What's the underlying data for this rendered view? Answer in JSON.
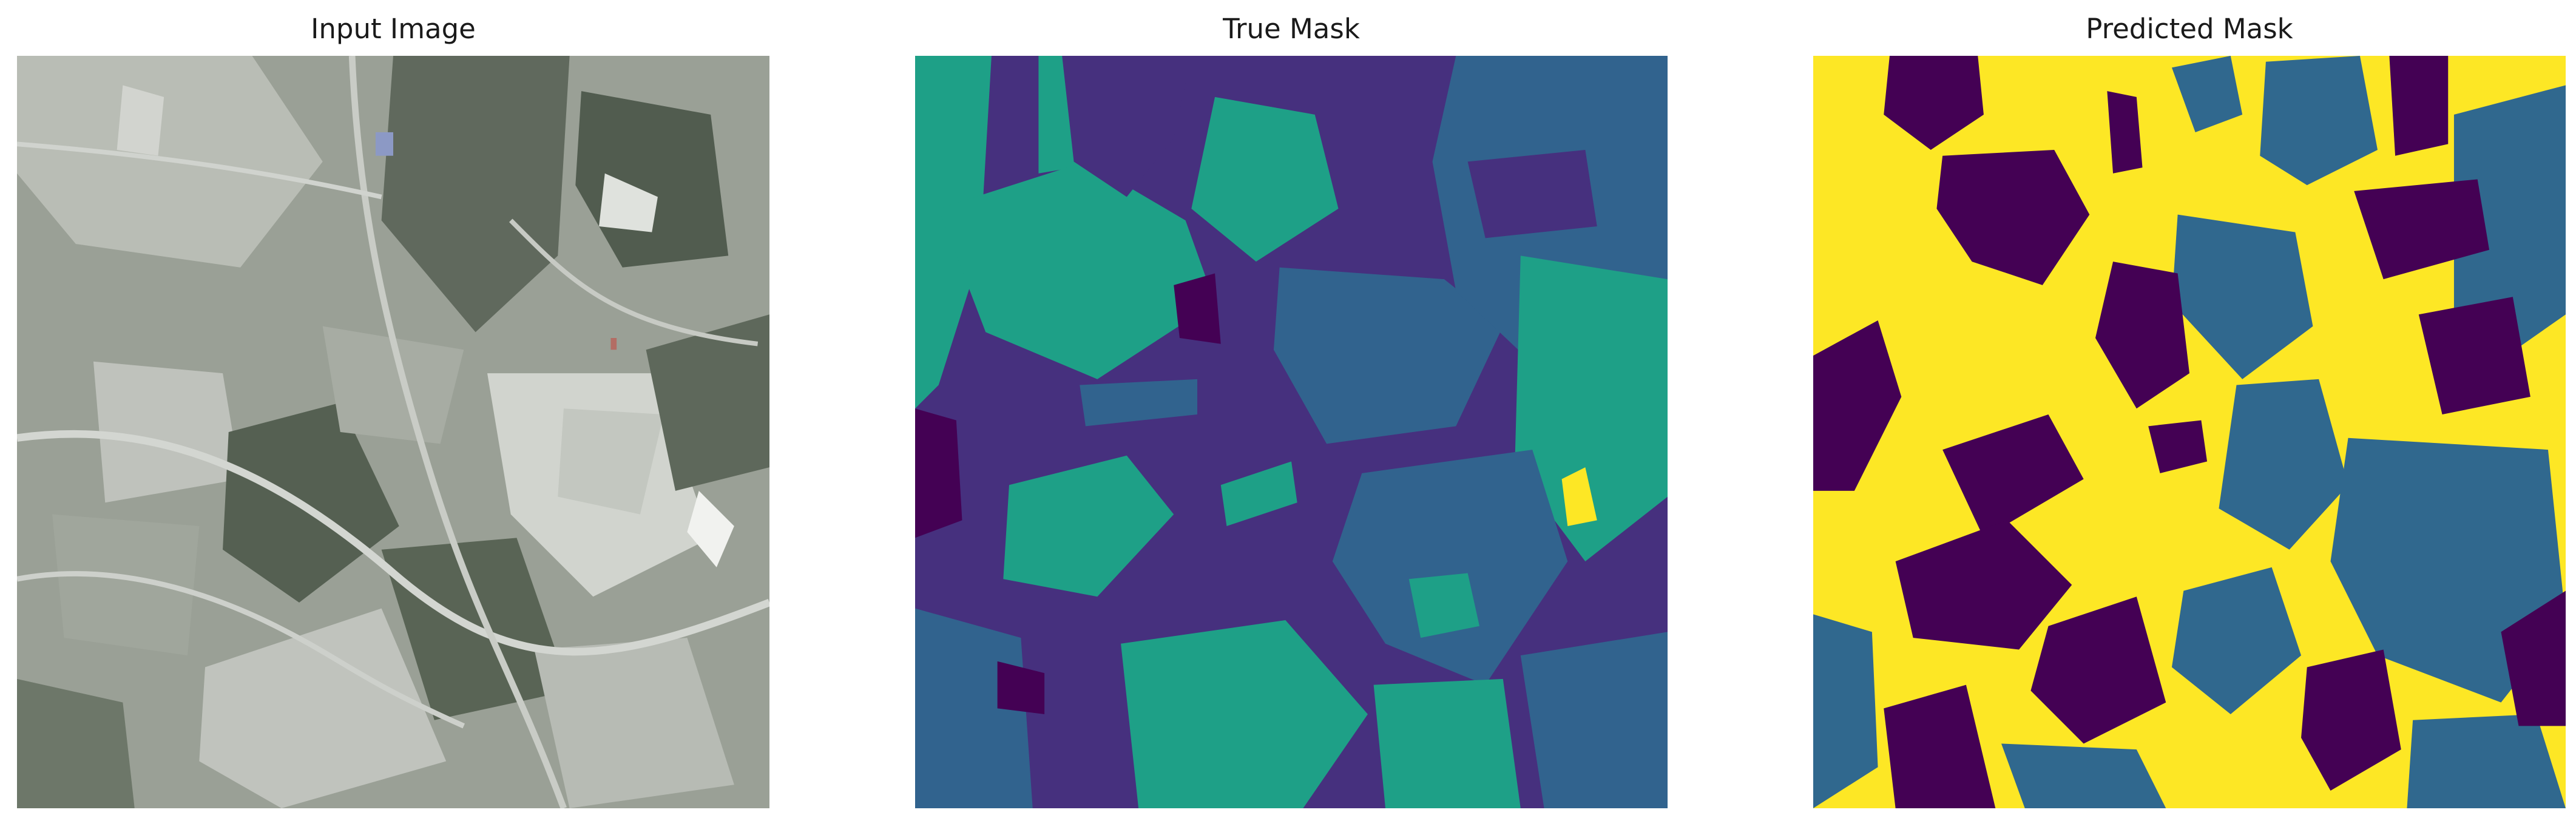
{
  "figure": {
    "panels": [
      {
        "title": "Input Image",
        "content": "aerial photograph",
        "colors": {
          "dark": "#4f5a4c",
          "mid": "#8f968c",
          "light": "#c2c6c0",
          "field": "#a7aba4",
          "forest": "#5b6658",
          "road": "#d5d8d2"
        }
      },
      {
        "title": "True Mask",
        "content": "segmentation mask",
        "colors": {
          "class_0": "#46307e",
          "class_1": "#31638e",
          "class_2": "#1ea087",
          "class_3": "#fde725",
          "class_dark": "#440154"
        }
      },
      {
        "title": "Predicted Mask",
        "content": "segmentation mask",
        "colors": {
          "background": "#fde725",
          "class_a": "#440154",
          "class_b": "#30688e"
        }
      }
    ]
  }
}
